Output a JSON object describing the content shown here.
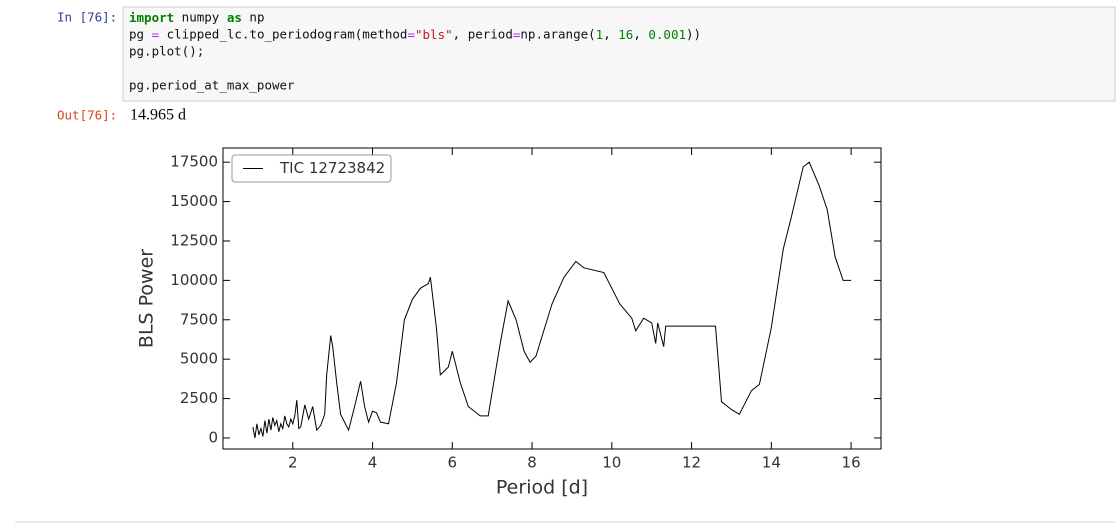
{
  "notebook": {
    "input_prompt": "In [76]:",
    "code_lines": [
      "import numpy as np",
      "pg = clipped_lc.to_periodogram(method=\"bls\", period=np.arange(1, 16, 0.001))",
      "pg.plot();"
    ],
    "code_last_line": "pg.period_at_max_power",
    "output_prompt": "Out[76]:",
    "output_text": "14.965 d"
  },
  "chart_data": {
    "type": "line",
    "xlabel": "Period [d]",
    "ylabel": "BLS Power",
    "xlim": [
      0.25,
      16.75
    ],
    "ylim": [
      -700,
      18400
    ],
    "xticks": [
      2,
      4,
      6,
      8,
      10,
      12,
      14,
      16
    ],
    "yticks": [
      0,
      2500,
      5000,
      7500,
      10000,
      12500,
      15000,
      17500
    ],
    "legend": "upper left",
    "series": [
      {
        "name": "TIC 12723842",
        "color": "#000000",
        "x": [
          1.0,
          1.05,
          1.1,
          1.15,
          1.2,
          1.25,
          1.3,
          1.35,
          1.4,
          1.45,
          1.5,
          1.55,
          1.6,
          1.65,
          1.7,
          1.75,
          1.8,
          1.85,
          1.9,
          1.95,
          2.0,
          2.05,
          2.1,
          2.15,
          2.2,
          2.3,
          2.4,
          2.5,
          2.6,
          2.7,
          2.8,
          2.85,
          2.95,
          3.0,
          3.1,
          3.2,
          3.4,
          3.55,
          3.7,
          3.8,
          3.9,
          4.0,
          4.1,
          4.2,
          4.4,
          4.6,
          4.8,
          5.0,
          5.2,
          5.4,
          5.45,
          5.6,
          5.7,
          5.9,
          6.0,
          6.2,
          6.4,
          6.7,
          6.9,
          7.2,
          7.4,
          7.6,
          7.8,
          7.95,
          8.1,
          8.5,
          8.8,
          9.1,
          9.3,
          9.8,
          10.2,
          10.5,
          10.6,
          10.8,
          11.0,
          11.1,
          11.15,
          11.3,
          11.35,
          12.6,
          12.75,
          13.0,
          13.2,
          13.5,
          13.7,
          14.0,
          14.3,
          14.5,
          14.8,
          14.95,
          15.2,
          15.4,
          15.6,
          15.8,
          16.0
        ],
        "values": [
          700,
          0,
          900,
          200,
          600,
          100,
          1100,
          300,
          1200,
          500,
          1300,
          800,
          1100,
          400,
          900,
          600,
          1400,
          900,
          700,
          1200,
          900,
          1400,
          2400,
          600,
          700,
          2100,
          1200,
          2000,
          500,
          800,
          1500,
          4000,
          6500,
          5800,
          3500,
          1500,
          500,
          2000,
          3600,
          2000,
          1000,
          1700,
          1600,
          1000,
          900,
          3500,
          7500,
          8800,
          9500,
          9800,
          10200,
          7000,
          4000,
          4500,
          5500,
          3500,
          2000,
          1400,
          1400,
          6000,
          8700,
          7500,
          5500,
          4800,
          5200,
          8500,
          10200,
          11200,
          10800,
          10500,
          8500,
          7600,
          6800,
          7600,
          7300,
          6000,
          7300,
          5800,
          7100,
          7100,
          2300,
          1800,
          1500,
          3000,
          3400,
          7000,
          12000,
          14000,
          17200,
          17500,
          16000,
          14500,
          11500,
          10000,
          10000
        ]
      }
    ]
  }
}
